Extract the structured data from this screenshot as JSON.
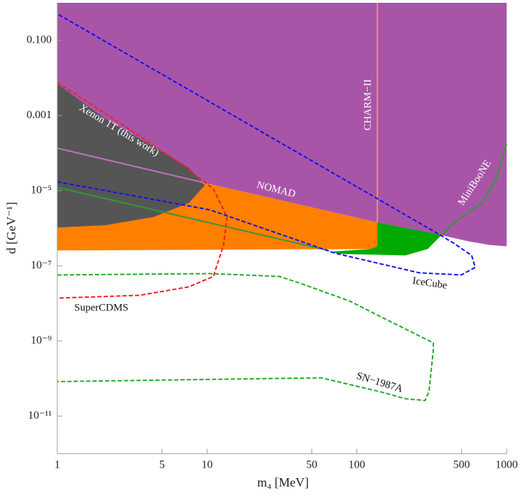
{
  "chart_data": {
    "type": "region",
    "xlabel": "m₄ [MeV]",
    "ylabel": "d [GeV⁻¹]",
    "log_x": true,
    "log_y": true,
    "xlim": [
      1,
      1000
    ],
    "ylim": [
      1e-12,
      1
    ],
    "xticks": [
      1,
      5,
      10,
      50,
      100,
      500,
      1000
    ],
    "yticks": [
      {
        "value": 0.1,
        "label": "0.100"
      },
      {
        "value": 0.001,
        "label": "0.001"
      },
      {
        "value": 1e-05,
        "label": "10⁻⁵"
      },
      {
        "value": 1e-07,
        "label": "10⁻⁷"
      },
      {
        "value": 1e-09,
        "label": "10⁻⁹"
      },
      {
        "value": 1e-11,
        "label": "10⁻¹¹"
      }
    ],
    "regions": [
      {
        "name": "NOMAD",
        "color": "#a855a8",
        "x": [
          1,
          1000,
          1000,
          765,
          554,
          380,
          137,
          9.86,
          1
        ],
        "y": [
          1,
          1,
          3.3e-07,
          3.6e-07,
          4.5e-07,
          6.3e-07,
          1.43e-06,
          1.58e-05,
          0.000129
        ]
      },
      {
        "color": "#ff7f00",
        "x": [
          1,
          123,
          137,
          137,
          9.86,
          1
        ],
        "y": [
          2.56e-07,
          2.8e-07,
          3.3e-07,
          1.43e-06,
          1.58e-05,
          1.58e-05
        ]
      },
      {
        "color": "#00aa00",
        "x": [
          137,
          368,
          297,
          211,
          80.1,
          64.6,
          123,
          137
        ],
        "y": [
          1.43e-06,
          6.6e-07,
          2.8e-07,
          1.89e-07,
          2.06e-07,
          2.35e-07,
          2.8e-07,
          3.3e-07
        ]
      },
      {
        "name": "Xenon 1T (this work)",
        "color": "#555555",
        "x": [
          1,
          2.08,
          4.4,
          7.54,
          9.65,
          7.54,
          4.4,
          2.08,
          1
        ],
        "y": [
          0.007,
          0.00082,
          0.000147,
          4.1e-05,
          1.39e-05,
          4.7e-06,
          2e-06,
          1.2e-06,
          1.05e-06
        ]
      }
    ],
    "curves": [
      {
        "color": "#c070c0",
        "dashed": false,
        "x": [
          1,
          9.86
        ],
        "y": [
          0.000135,
          1.58e-05
        ]
      },
      {
        "color": "#339933",
        "dashed": false,
        "x": [
          1,
          64.6
        ],
        "y": [
          1.22e-05,
          2.56e-07
        ]
      },
      {
        "name": "MiniBooNE",
        "color": "#339933",
        "dashed": false,
        "x": [
          368,
          447,
          687,
          851,
          1000
        ],
        "y": [
          6.6e-07,
          1.43e-06,
          4.7e-06,
          2.1e-05,
          0.00018
        ]
      },
      {
        "name": "CHARM−II",
        "color": "#ff9050",
        "dashed": false,
        "x": [
          137,
          137
        ],
        "y": [
          1,
          1.43e-06
        ]
      },
      {
        "name": "IceCube",
        "color": "#1010ee",
        "dashed": true,
        "x": [
          1,
          10.4,
          71.9,
          261,
          498,
          617,
          584,
          447,
          360,
          1
        ],
        "y": [
          1.72e-05,
          3.1e-06,
          2.15e-07,
          6.5e-08,
          5.7e-08,
          9.1e-08,
          1.89e-07,
          3.9e-07,
          6.6e-07,
          0.51
        ]
      },
      {
        "name": "SuperCDMS",
        "color": "#ee2020",
        "dashed": true,
        "x": [
          1,
          2.57,
          6.77,
          11.0,
          13.6,
          12.9,
          11.0,
          7.54,
          3.55,
          1
        ],
        "y": [
          0.0076,
          0.00066,
          5e-05,
          1.12e-05,
          2e-06,
          3.6e-07,
          5.2e-08,
          2.75e-08,
          1.64e-08,
          1.38e-08
        ]
      },
      {
        "name": "SN−1987A",
        "color": "#22aa22",
        "dashed": true,
        "x": [
          1,
          10.4,
          30.5,
          42.1,
          89.2,
          137,
          324,
          324,
          303,
          285,
          211,
          145,
          58.0,
          1
        ],
        "y": [
          5.7e-08,
          6.2e-08,
          5.2e-08,
          3.4e-08,
          1.16e-08,
          4.9e-09,
          8.9e-10,
          5.8e-10,
          4.4e-11,
          2.6e-11,
          2.9e-11,
          4.4e-11,
          1.04e-10,
          8.3e-11
        ]
      }
    ]
  }
}
